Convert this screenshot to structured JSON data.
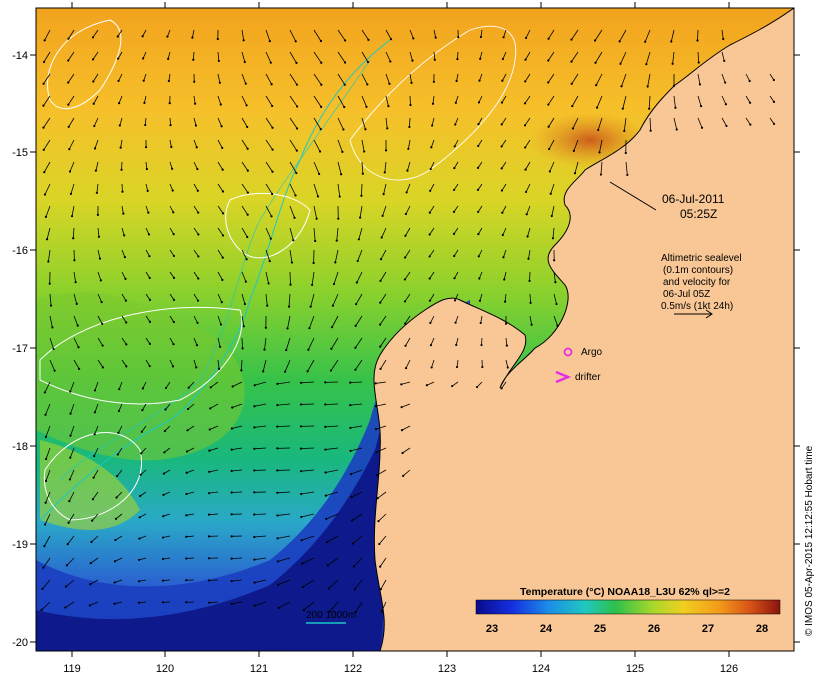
{
  "map": {
    "lon_ticks": [
      "119",
      "120",
      "121",
      "122",
      "123",
      "124",
      "125",
      "126"
    ],
    "lat_ticks": [
      "-14",
      "-15",
      "-16",
      "-17",
      "-18",
      "-19",
      "-20"
    ]
  },
  "annotations": {
    "date": "06-Jul-2011",
    "time": "05:25Z",
    "altimetry_lines": [
      "Altimetric sealevel",
      "(0.1m contours)",
      "and velocity for",
      "06-Jul 05Z",
      "0.5m/s (1kt 24h)"
    ],
    "argo_label": "Argo",
    "drifter_label": "drifter",
    "depth_label": "200  1000m"
  },
  "colorbar": {
    "title": "Temperature (°C) NOAA18_L3U 62% ql>=2",
    "ticks": [
      "23",
      "24",
      "25",
      "26",
      "27",
      "28"
    ]
  },
  "credit": "© IMOS 05-Apr-2015 12:12:55 Hobart time",
  "colors": {
    "land": "#f9c795",
    "argo": "#e62ee6",
    "drifter": "#e62ee6",
    "depth_contour": "#19c8c8",
    "sealevel_contour": "#ffffff"
  }
}
